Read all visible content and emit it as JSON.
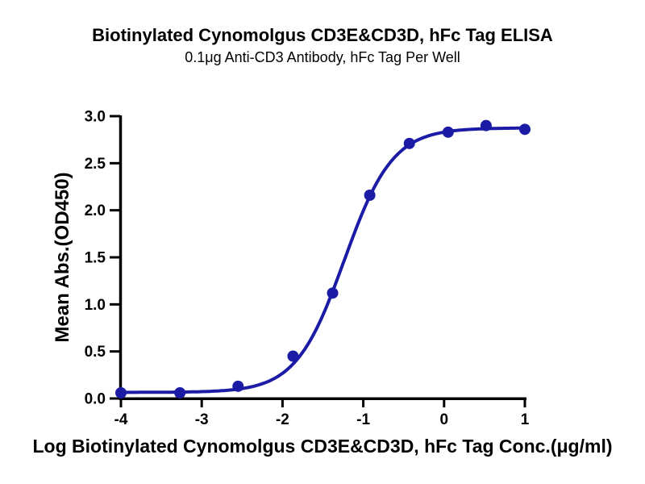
{
  "chart_data": {
    "type": "scatter",
    "title": "Biotinylated Cynomolgus CD3E&CD3D, hFc Tag ELISA",
    "subtitle": "0.1μg Anti-CD3 Antibody, hFc Tag Per Well",
    "xlabel": "Log Biotinylated Cynomolgus CD3E&CD3D, hFc Tag Conc.(μg/ml)",
    "ylabel": "Mean Abs.(OD450)",
    "xlim": [
      -4,
      1
    ],
    "ylim": [
      0.0,
      3.0
    ],
    "x_ticks": [
      -4,
      -3,
      -2,
      -1,
      0,
      1
    ],
    "x_tick_labels": [
      "-4",
      "-3",
      "-2",
      "-1",
      "0",
      "1"
    ],
    "y_ticks": [
      0.0,
      0.5,
      1.0,
      1.5,
      2.0,
      2.5,
      3.0
    ],
    "y_tick_labels": [
      "0.0",
      "0.5",
      "1.0",
      "1.5",
      "2.0",
      "2.5",
      "3.0"
    ],
    "grid": false,
    "legend": null,
    "points": [
      [
        -4.0,
        0.06
      ],
      [
        -3.27,
        0.06
      ],
      [
        -2.55,
        0.13
      ],
      [
        -1.87,
        0.45
      ],
      [
        -1.38,
        1.12
      ],
      [
        -0.92,
        2.16
      ],
      [
        -0.43,
        2.71
      ],
      [
        0.05,
        2.83
      ],
      [
        0.52,
        2.9
      ],
      [
        1.0,
        2.86
      ]
    ],
    "fit_curve": {
      "model": "4PL",
      "bottom": 0.065,
      "top": 2.875,
      "logEC50": -1.235,
      "hill": 1.45
    },
    "colors": {
      "curve": "#1b1ba6",
      "marker": "#1b1ba6",
      "axis": "#000000",
      "background": "#ffffff"
    }
  }
}
